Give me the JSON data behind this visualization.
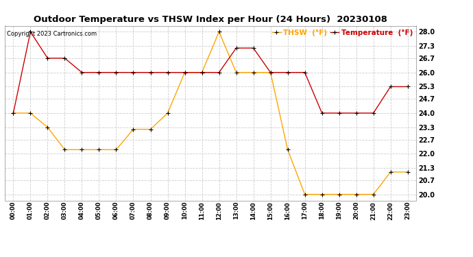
{
  "title": "Outdoor Temperature vs THSW Index per Hour (24 Hours)  20230108",
  "copyright": "Copyright 2023 Cartronics.com",
  "legend_thsw": "THSW  (°F)",
  "legend_temp": "Temperature  (°F)",
  "hours": [
    "00:00",
    "01:00",
    "02:00",
    "03:00",
    "04:00",
    "05:00",
    "06:00",
    "07:00",
    "08:00",
    "09:00",
    "10:00",
    "11:00",
    "12:00",
    "13:00",
    "14:00",
    "15:00",
    "16:00",
    "17:00",
    "18:00",
    "19:00",
    "20:00",
    "21:00",
    "22:00",
    "23:00"
  ],
  "temperature": [
    24.0,
    28.0,
    26.7,
    26.7,
    26.0,
    26.0,
    26.0,
    26.0,
    26.0,
    26.0,
    26.0,
    26.0,
    26.0,
    27.2,
    27.2,
    26.0,
    26.0,
    26.0,
    24.0,
    24.0,
    24.0,
    24.0,
    25.3,
    25.3
  ],
  "thsw": [
    24.0,
    24.0,
    23.3,
    22.2,
    22.2,
    22.2,
    22.2,
    23.2,
    23.2,
    24.0,
    26.0,
    26.0,
    28.0,
    26.0,
    26.0,
    26.0,
    22.2,
    20.0,
    20.0,
    20.0,
    20.0,
    20.0,
    21.1,
    21.1
  ],
  "ylim_min": 19.7,
  "ylim_max": 28.3,
  "yticks": [
    20.0,
    20.7,
    21.3,
    22.0,
    22.7,
    23.3,
    24.0,
    24.7,
    25.3,
    26.0,
    26.7,
    27.3,
    28.0
  ],
  "color_thsw": "#FFA500",
  "color_temp": "#CC0000",
  "bg_color": "#FFFFFF",
  "grid_color": "#CCCCCC",
  "title_color": "#000000",
  "legend_thsw_color": "#FFA500",
  "legend_temp_color": "#CC0000",
  "copyright_color": "#000000",
  "marker_edge_color": "#000000"
}
